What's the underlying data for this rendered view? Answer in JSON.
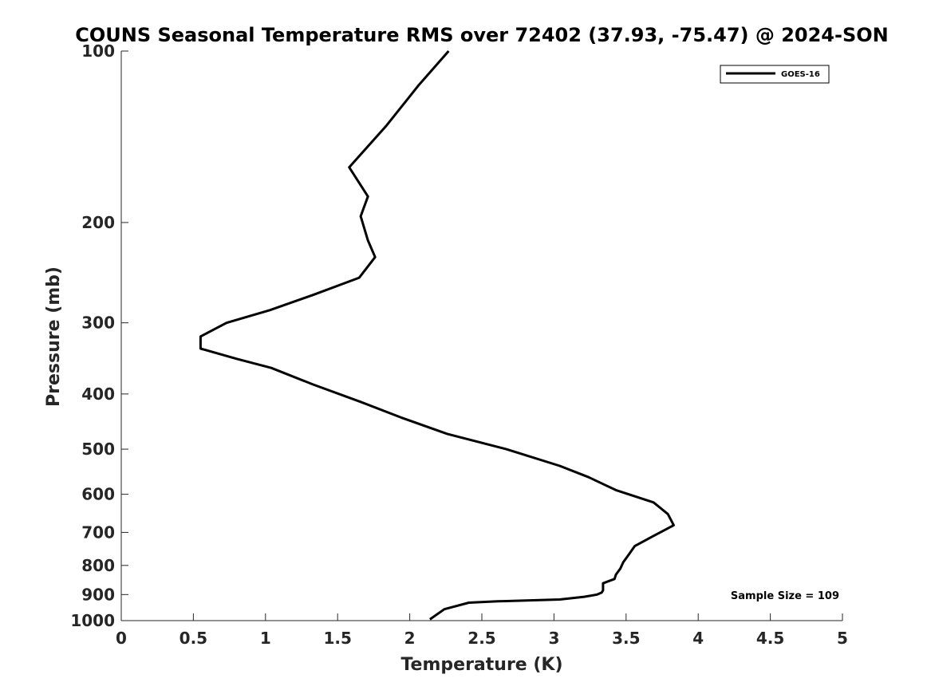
{
  "chart_data": {
    "type": "line",
    "title": "COUNS Seasonal Temperature RMS over 72402 (37.93, -75.47) @ 2024-SON",
    "xlabel": "Temperature (K)",
    "ylabel": "Pressure (mb)",
    "xlim": [
      0,
      5
    ],
    "ylim": [
      100,
      1000
    ],
    "y_scale": "log",
    "y_direction": "reversed",
    "grid": false,
    "legend_position": "top-right",
    "x_ticks": [
      0,
      0.5,
      1,
      1.5,
      2,
      2.5,
      3,
      3.5,
      4,
      4.5,
      5
    ],
    "x_tick_labels": [
      "0",
      "0.5",
      "1",
      "1.5",
      "2",
      "2.5",
      "3",
      "3.5",
      "4",
      "4.5",
      "5"
    ],
    "y_ticks": [
      100,
      200,
      300,
      400,
      500,
      600,
      700,
      800,
      900,
      1000
    ],
    "y_tick_labels": [
      "100",
      "200",
      "300",
      "400",
      "500",
      "600",
      "700",
      "800",
      "900",
      "1000"
    ],
    "series": [
      {
        "name": "GOES-16",
        "color": "#000000",
        "points": [
          [
            2.27,
            100
          ],
          [
            2.06,
            115
          ],
          [
            1.84,
            135
          ],
          [
            1.58,
            160
          ],
          [
            1.71,
            180
          ],
          [
            1.66,
            195
          ],
          [
            1.71,
            215
          ],
          [
            1.76,
            230
          ],
          [
            1.65,
            250
          ],
          [
            1.33,
            268
          ],
          [
            1.03,
            285
          ],
          [
            0.73,
            300
          ],
          [
            0.55,
            317
          ],
          [
            0.55,
            333
          ],
          [
            0.8,
            347
          ],
          [
            1.04,
            360
          ],
          [
            1.33,
            385
          ],
          [
            1.66,
            413
          ],
          [
            1.94,
            440
          ],
          [
            2.26,
            470
          ],
          [
            2.67,
            500
          ],
          [
            3.04,
            535
          ],
          [
            3.24,
            560
          ],
          [
            3.43,
            590
          ],
          [
            3.69,
            620
          ],
          [
            3.79,
            650
          ],
          [
            3.83,
            680
          ],
          [
            3.69,
            710
          ],
          [
            3.56,
            740
          ],
          [
            3.52,
            765
          ],
          [
            3.48,
            790
          ],
          [
            3.46,
            810
          ],
          [
            3.43,
            830
          ],
          [
            3.42,
            845
          ],
          [
            3.34,
            860
          ],
          [
            3.34,
            875
          ],
          [
            3.34,
            885
          ],
          [
            3.33,
            893
          ],
          [
            3.3,
            900
          ],
          [
            3.21,
            908
          ],
          [
            3.04,
            918
          ],
          [
            2.61,
            925
          ],
          [
            2.41,
            930
          ],
          [
            2.24,
            955
          ],
          [
            2.14,
            995
          ]
        ]
      }
    ],
    "annotations": [
      {
        "text": "Sample Size = 109",
        "position": "bottom-right"
      }
    ]
  }
}
